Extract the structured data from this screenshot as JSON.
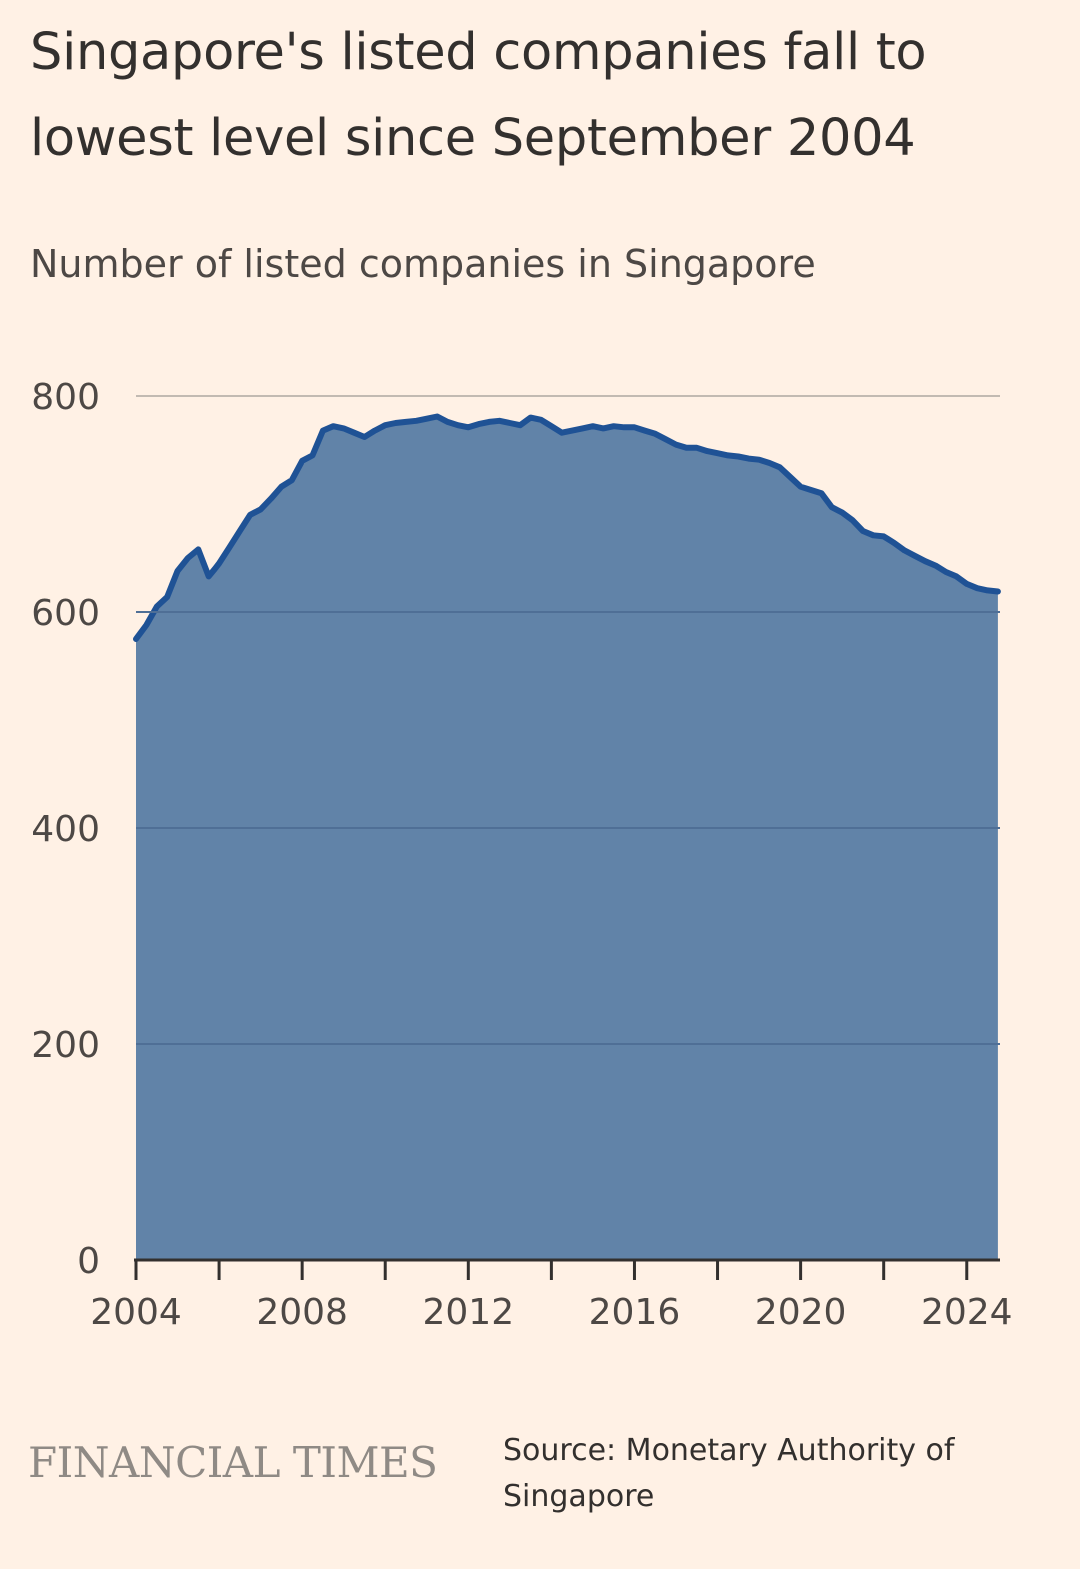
{
  "title": "Singapore's listed companies fall to lowest level since September 2004",
  "subtitle": "Number of listed companies in Singapore",
  "brand": "FINANCIAL TIMES",
  "source": "Source: Monetary Authority of Singapore",
  "colors": {
    "background": "#fff1e5",
    "area": "#6183a8",
    "line": "#1f5295",
    "grid": "#c2bab2",
    "axis": "#33302e"
  },
  "chart_data": {
    "type": "area",
    "title": "Singapore's listed companies fall to lowest level since September 2004",
    "subtitle": "Number of listed companies in Singapore",
    "xlabel": "",
    "ylabel": "",
    "xlim": [
      2004,
      2024.8
    ],
    "ylim": [
      0,
      800
    ],
    "y_ticks": [
      0,
      200,
      400,
      600,
      800
    ],
    "x_ticks": [
      2004,
      2008,
      2012,
      2016,
      2020,
      2024
    ],
    "x_minor_ticks": [
      2006,
      2010,
      2014,
      2018,
      2022
    ],
    "grid": true,
    "series": [
      {
        "name": "Listed companies",
        "x": [
          2004.0,
          2004.25,
          2004.5,
          2004.75,
          2005.0,
          2005.25,
          2005.5,
          2005.75,
          2005.9,
          2006.0,
          2006.25,
          2006.5,
          2006.75,
          2007.0,
          2007.25,
          2007.5,
          2007.75,
          2008.0,
          2008.25,
          2008.5,
          2008.75,
          2009.0,
          2009.25,
          2009.5,
          2009.75,
          2010.0,
          2010.25,
          2010.5,
          2010.75,
          2011.0,
          2011.25,
          2011.5,
          2011.75,
          2012.0,
          2012.25,
          2012.5,
          2012.75,
          2013.0,
          2013.25,
          2013.5,
          2013.75,
          2014.0,
          2014.25,
          2014.5,
          2014.75,
          2015.0,
          2015.25,
          2015.5,
          2015.75,
          2016.0,
          2016.25,
          2016.5,
          2016.75,
          2017.0,
          2017.25,
          2017.5,
          2017.75,
          2018.0,
          2018.25,
          2018.5,
          2018.75,
          2019.0,
          2019.25,
          2019.5,
          2019.75,
          2020.0,
          2020.25,
          2020.5,
          2020.75,
          2021.0,
          2021.25,
          2021.5,
          2021.75,
          2022.0,
          2022.25,
          2022.5,
          2022.75,
          2023.0,
          2023.25,
          2023.5,
          2023.75,
          2024.0,
          2024.25,
          2024.5,
          2024.75
        ],
        "values": [
          575,
          588,
          605,
          614,
          638,
          650,
          658,
          633,
          640,
          645,
          660,
          675,
          690,
          695,
          705,
          716,
          722,
          740,
          745,
          768,
          772,
          770,
          766,
          762,
          768,
          773,
          775,
          776,
          777,
          779,
          781,
          776,
          773,
          771,
          774,
          776,
          777,
          775,
          773,
          780,
          778,
          772,
          766,
          768,
          770,
          772,
          770,
          772,
          771,
          771,
          768,
          765,
          760,
          755,
          752,
          752,
          749,
          747,
          745,
          744,
          742,
          741,
          738,
          734,
          725,
          716,
          713,
          710,
          697,
          692,
          685,
          675,
          671,
          670,
          664,
          657,
          652,
          647,
          643,
          637,
          633,
          626,
          622,
          620,
          619
        ]
      }
    ]
  }
}
